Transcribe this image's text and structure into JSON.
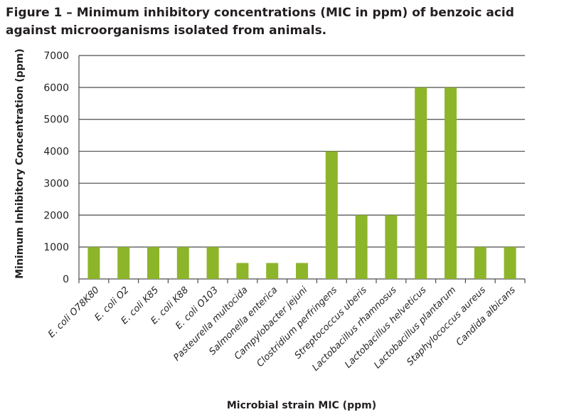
{
  "chart_data": {
    "type": "bar",
    "title": "Figure 1 – Minimum inhibitory concentrations (MIC in ppm) of benzoic acid against microorganisms isolated from animals.",
    "xlabel": "Microbial strain MIC (ppm)",
    "ylabel": "Minimum Inhibitory Concentration (ppm)",
    "ylim": [
      0,
      7000
    ],
    "yticks": [
      0,
      1000,
      2000,
      3000,
      4000,
      5000,
      6000,
      7000
    ],
    "grid": true,
    "legend": "none",
    "bar_color": "#8db52a",
    "categories": [
      "E. coli O78K80",
      "E. coli O2",
      "E. coli K85",
      "E. coli K88",
      "E. coli O103",
      "Pasteurella multocida",
      "Salmonella enterica",
      "Campylobacter jejuni",
      "Clostridium perfringens",
      "Streptococcus uberis",
      "Lactobacillus rhamnosus",
      "Lactobacillus helveticus",
      "Lactobacillus plantarum",
      "Staphylococcus aureus",
      "Candida albicans"
    ],
    "values": [
      1000,
      1000,
      1000,
      1000,
      1000,
      500,
      500,
      500,
      4000,
      2000,
      2000,
      6000,
      6000,
      1000,
      1000
    ]
  }
}
